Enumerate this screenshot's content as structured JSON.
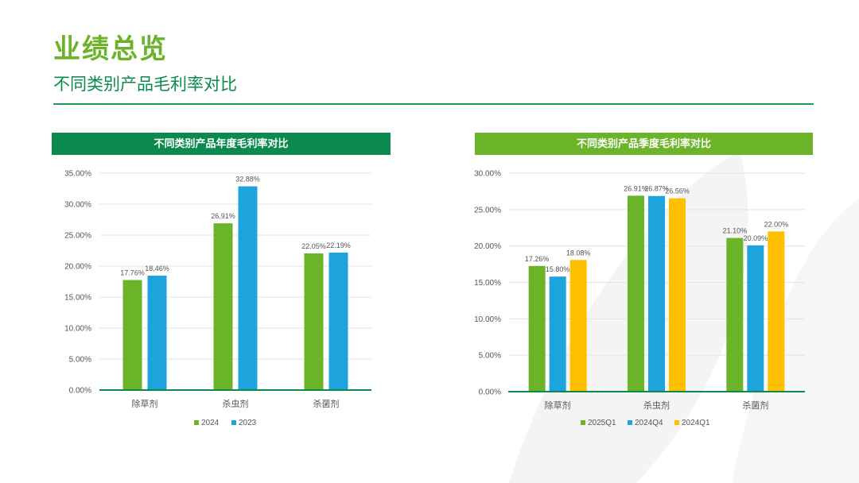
{
  "page": {
    "title": "业绩总览",
    "subtitle": "不同类别产品毛利率对比"
  },
  "colors": {
    "dark_green": "#0b8a4e",
    "green": "#6bb42a",
    "blue": "#1ea4dd",
    "yellow": "#ffc000",
    "grid": "#e3e3e3",
    "axis": "#0b8a4e",
    "text": "#555555"
  },
  "chart_data": [
    {
      "type": "bar",
      "title": "不同类别产品年度毛利率对比",
      "categories": [
        "除草剂",
        "杀虫剂",
        "杀菌剂"
      ],
      "series": [
        {
          "name": "2024",
          "values": [
            17.76,
            26.91,
            22.05
          ],
          "labels": [
            "17.76%",
            "26.91%",
            "22.05%"
          ],
          "color": "#6bb42a"
        },
        {
          "name": "2023",
          "values": [
            18.46,
            32.88,
            22.19
          ],
          "labels": [
            "18.46%",
            "32.88%",
            "22.19%"
          ],
          "color": "#1ea4dd"
        }
      ],
      "ylim": [
        0,
        35
      ],
      "yticks": [
        0,
        5,
        10,
        15,
        20,
        25,
        30,
        35
      ],
      "ytick_labels": [
        "0.00%",
        "5.00%",
        "10.00%",
        "15.00%",
        "20.00%",
        "25.00%",
        "30.00%",
        "35.00%"
      ],
      "legend": "bottom",
      "grid": true
    },
    {
      "type": "bar",
      "title": "不同类别产品季度毛利率对比",
      "categories": [
        "除草剂",
        "杀虫剂",
        "杀菌剂"
      ],
      "series": [
        {
          "name": "2025Q1",
          "values": [
            17.26,
            26.91,
            21.1
          ],
          "labels": [
            "17.26%",
            "26.91%",
            "21.10%"
          ],
          "color": "#6bb42a"
        },
        {
          "name": "2024Q4",
          "values": [
            15.8,
            26.87,
            20.09
          ],
          "labels": [
            "15.80%",
            "26.87%",
            "20.09%"
          ],
          "color": "#1ea4dd"
        },
        {
          "name": "2024Q1",
          "values": [
            18.08,
            26.56,
            22.0
          ],
          "labels": [
            "18.08%",
            "26.56%",
            "22.00%"
          ],
          "color": "#ffc000"
        }
      ],
      "ylim": [
        0,
        30
      ],
      "yticks": [
        0,
        5,
        10,
        15,
        20,
        25,
        30
      ],
      "ytick_labels": [
        "0.00%",
        "5.00%",
        "10.00%",
        "15.00%",
        "20.00%",
        "25.00%",
        "30.00%"
      ],
      "legend": "bottom",
      "grid": true
    }
  ]
}
